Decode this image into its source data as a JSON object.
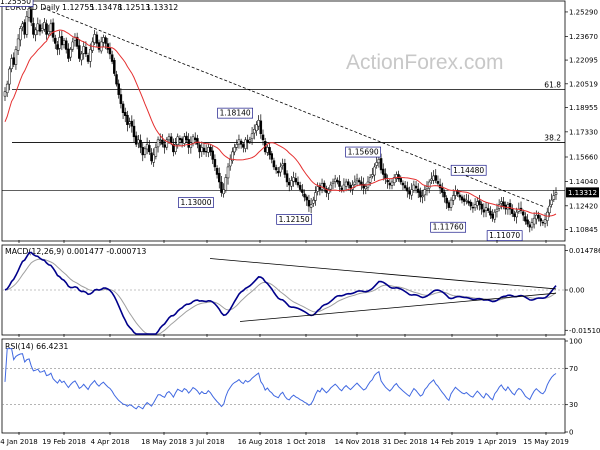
{
  "chart_data": [
    {
      "type": "candlestick",
      "title": "EURUSD Daily",
      "ohlc": [
        "1.12755",
        "1.13478",
        "1.12513",
        "1.13312"
      ],
      "watermark": "ActionForex.com",
      "x_ticks": [
        "4 Jan 2018",
        "19 Feb 2018",
        "4 Apr 2018",
        "18 May 2018",
        "3 Jul 2018",
        "16 Aug 2018",
        "1 Oct 2018",
        "14 Nov 2018",
        "31 Dec 2018",
        "14 Feb 2019",
        "1 Apr 2019",
        "15 May 2019"
      ],
      "y_ticks": [
        "1.25290",
        "1.23670",
        "1.22095",
        "1.20519",
        "1.18955",
        "1.17330",
        "1.15660",
        "1.14040",
        "1.12420",
        "1.10845"
      ],
      "ylim": [
        1.1015,
        1.2595
      ],
      "last_price": "1.13312",
      "fib_levels": [
        {
          "label": "61.8",
          "value": 1.2015
        },
        {
          "label": "38.2",
          "value": 1.1662
        }
      ],
      "horizontal_line": {
        "value": 1.1345
      },
      "price_labels": [
        {
          "text": "1.25550",
          "value": 1.2555
        },
        {
          "text": "1.18140",
          "value": 1.1814
        },
        {
          "text": "1.13000",
          "value": 1.13
        },
        {
          "text": "1.12150",
          "value": 1.1215
        },
        {
          "text": "1.15690",
          "value": 1.1569
        },
        {
          "text": "1.14480",
          "value": 1.1448
        },
        {
          "text": "1.11760",
          "value": 1.1176
        },
        {
          "text": "1.11070",
          "value": 1.1107
        }
      ],
      "close_series": [
        1.2,
        1.205,
        1.215,
        1.222,
        1.218,
        1.228,
        1.235,
        1.242,
        1.245,
        1.238,
        1.25,
        1.255,
        1.246,
        1.238,
        1.241,
        1.245,
        1.24,
        1.242,
        1.246,
        1.238,
        1.24,
        1.245,
        1.236,
        1.232,
        1.228,
        1.236,
        1.231,
        1.234,
        1.228,
        1.222,
        1.228,
        1.233,
        1.236,
        1.23,
        1.222,
        1.225,
        1.23,
        1.225,
        1.22,
        1.228,
        1.233,
        1.238,
        1.232,
        1.228,
        1.233,
        1.236,
        1.232,
        1.228,
        1.225,
        1.22,
        1.212,
        1.205,
        1.198,
        1.192,
        1.186,
        1.184,
        1.178,
        1.18,
        1.177,
        1.17,
        1.165,
        1.168,
        1.163,
        1.158,
        1.162,
        1.165,
        1.16,
        1.154,
        1.158,
        1.163,
        1.168,
        1.168,
        1.165,
        1.163,
        1.168,
        1.17,
        1.166,
        1.16,
        1.165,
        1.17,
        1.168,
        1.166,
        1.17,
        1.168,
        1.163,
        1.166,
        1.17,
        1.168,
        1.165,
        1.16,
        1.163,
        1.16,
        1.16,
        1.163,
        1.16,
        1.155,
        1.15,
        1.145,
        1.14,
        1.133,
        1.135,
        1.143,
        1.15,
        1.155,
        1.16,
        1.163,
        1.165,
        1.168,
        1.165,
        1.163,
        1.168,
        1.166,
        1.168,
        1.172,
        1.175,
        1.178,
        1.181,
        1.172,
        1.168,
        1.16,
        1.163,
        1.158,
        1.155,
        1.15,
        1.148,
        1.146,
        1.15,
        1.152,
        1.145,
        1.14,
        1.138,
        1.141,
        1.143,
        1.14,
        1.138,
        1.135,
        1.133,
        1.13,
        1.128,
        1.124,
        1.125,
        1.128,
        1.133,
        1.137,
        1.135,
        1.139,
        1.136,
        1.133,
        1.135,
        1.138,
        1.14,
        1.142,
        1.14,
        1.137,
        1.135,
        1.138,
        1.14,
        1.138,
        1.136,
        1.138,
        1.14,
        1.142,
        1.14,
        1.138,
        1.136,
        1.137,
        1.14,
        1.143,
        1.145,
        1.15,
        1.153,
        1.155,
        1.148,
        1.145,
        1.142,
        1.14,
        1.138,
        1.14,
        1.143,
        1.145,
        1.142,
        1.14,
        1.138,
        1.136,
        1.134,
        1.132,
        1.135,
        1.138,
        1.136,
        1.133,
        1.13,
        1.131,
        1.135,
        1.137,
        1.14,
        1.142,
        1.144,
        1.141,
        1.139,
        1.136,
        1.133,
        1.13,
        1.126,
        1.123,
        1.128,
        1.131,
        1.134,
        1.132,
        1.13,
        1.128,
        1.127,
        1.128,
        1.126,
        1.124,
        1.123,
        1.125,
        1.127,
        1.125,
        1.122,
        1.12,
        1.123,
        1.121,
        1.118,
        1.116,
        1.12,
        1.122,
        1.125,
        1.127,
        1.124,
        1.122,
        1.125,
        1.122,
        1.119,
        1.117,
        1.12,
        1.122,
        1.121,
        1.118,
        1.114,
        1.112,
        1.11,
        1.113,
        1.116,
        1.118,
        1.116,
        1.114,
        1.113,
        1.115,
        1.12,
        1.124,
        1.128,
        1.131,
        1.133
      ]
    },
    {
      "type": "line",
      "title": "MACD(12,26,9) 0.001477 -0.000713",
      "y_ticks": [
        "0.014786",
        "0.00",
        "-0.015107"
      ],
      "ylim": [
        -0.0165,
        0.0165
      ],
      "zero_label": "0.00"
    },
    {
      "type": "line",
      "title": "RSI(14) 66.4231",
      "y_ticks": [
        "100",
        "70",
        "30",
        "0"
      ],
      "ylim": [
        0,
        100
      ],
      "levels": [
        70,
        30
      ]
    }
  ],
  "colors": {
    "candle": "#000000",
    "ma": "#e53030",
    "fib_line": "#000000",
    "trend_line": "#000000",
    "macd_line": "#00008b",
    "signal_line": "#a0a0a0",
    "rsi_line": "#4169e1",
    "label_border": "#1a1a8a"
  }
}
